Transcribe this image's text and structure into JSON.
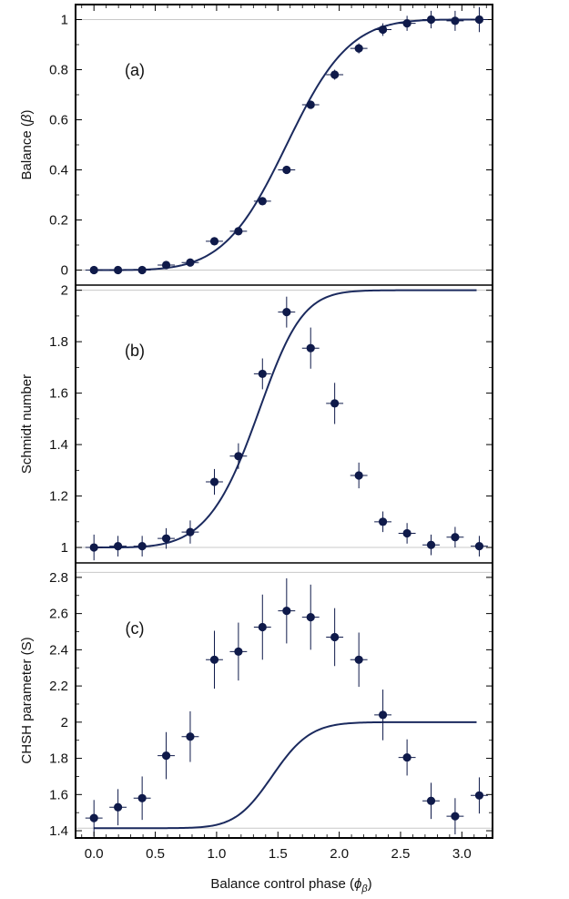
{
  "chart_data": {
    "type": "scatter",
    "x_title": "Balance control phase",
    "x_title_symbol": "ϕ",
    "x_title_subscript": "β",
    "x_ticks": [
      0.0,
      0.5,
      1.0,
      1.5,
      2.0,
      2.5,
      3.0
    ],
    "x_tick_labels": [
      "0.0",
      "0.5",
      "1.0",
      "1.5",
      "2.0",
      "2.5",
      "3.0"
    ],
    "xlim": [
      -0.15,
      3.25
    ],
    "x": [
      0.0,
      0.196,
      0.393,
      0.589,
      0.785,
      0.982,
      1.178,
      1.374,
      1.571,
      1.767,
      1.963,
      2.16,
      2.356,
      2.553,
      2.749,
      2.945,
      3.142
    ],
    "line_color": "#1b2a5e",
    "point_color": "#0f1a4a",
    "panels": [
      {
        "label": "(a)",
        "ylabel": "Balance",
        "ylabel_symbol": "β",
        "ylim": [
          -0.06,
          1.06
        ],
        "yticks": [
          0,
          0.2,
          0.4,
          0.6,
          0.8,
          1
        ],
        "ytick_labels": [
          "0",
          "0.2",
          "0.4",
          "0.6",
          "0.8",
          "1"
        ],
        "gridlines": [
          0,
          1
        ],
        "values": [
          0.0,
          0.0,
          0.0,
          0.02,
          0.03,
          0.115,
          0.155,
          0.275,
          0.4,
          0.66,
          0.78,
          0.885,
          0.96,
          0.985,
          1.0,
          0.995,
          1.0
        ],
        "y_err": [
          0.0,
          0.0,
          0.0,
          0.0,
          0.0,
          0.0,
          0.0,
          0.0,
          0.0,
          0.0,
          0.02,
          0.02,
          0.025,
          0.03,
          0.035,
          0.04,
          0.05
        ],
        "x_err": [
          0.07,
          0.07,
          0.07,
          0.07,
          0.07,
          0.07,
          0.07,
          0.07,
          0.07,
          0.07,
          0.07,
          0.07,
          0.07,
          0.07,
          0.07,
          0.07,
          0.07
        ],
        "fit": "balance"
      },
      {
        "label": "(b)",
        "ylabel": "Schmidt number",
        "ylim": [
          0.94,
          2.02
        ],
        "yticks": [
          1,
          1.2,
          1.4,
          1.6,
          1.8,
          2
        ],
        "ytick_labels": [
          "1",
          "1.2",
          "1.4",
          "1.6",
          "1.8",
          "2"
        ],
        "gridlines": [
          1,
          2
        ],
        "values": [
          1.0,
          1.005,
          1.005,
          1.035,
          1.06,
          1.255,
          1.355,
          1.675,
          1.915,
          1.775,
          1.56,
          1.28,
          1.1,
          1.055,
          1.01,
          1.04,
          1.005
        ],
        "y_err": [
          0.05,
          0.04,
          0.04,
          0.04,
          0.045,
          0.05,
          0.05,
          0.06,
          0.06,
          0.08,
          0.08,
          0.05,
          0.04,
          0.04,
          0.04,
          0.04,
          0.04
        ],
        "x_err": [
          0.07,
          0.07,
          0.07,
          0.07,
          0.07,
          0.07,
          0.07,
          0.07,
          0.07,
          0.07,
          0.07,
          0.07,
          0.07,
          0.07,
          0.07,
          0.07,
          0.07
        ],
        "fit": "schmidt"
      },
      {
        "label": "(c)",
        "ylabel": "CHSH parameter (S)",
        "ylim": [
          1.36,
          2.88
        ],
        "yticks": [
          1.4,
          1.6,
          1.8,
          2,
          2.2,
          2.4,
          2.6,
          2.8
        ],
        "ytick_labels": [
          "1.4",
          "1.6",
          "1.8",
          "2",
          "2.2",
          "2.4",
          "2.6",
          "2.8"
        ],
        "gridlines": [
          1.414,
          2.828
        ],
        "values": [
          1.47,
          1.53,
          1.58,
          1.815,
          1.92,
          2.345,
          2.39,
          2.525,
          2.615,
          2.58,
          2.47,
          2.345,
          2.04,
          1.805,
          1.565,
          1.48,
          1.595
        ],
        "y_err": [
          0.1,
          0.1,
          0.12,
          0.13,
          0.14,
          0.16,
          0.16,
          0.18,
          0.18,
          0.18,
          0.16,
          0.15,
          0.14,
          0.1,
          0.1,
          0.1,
          0.1
        ],
        "x_err": [
          0.07,
          0.07,
          0.07,
          0.07,
          0.07,
          0.07,
          0.07,
          0.07,
          0.07,
          0.07,
          0.07,
          0.07,
          0.07,
          0.07,
          0.07,
          0.07,
          0.07
        ],
        "fit": "chsh"
      }
    ]
  }
}
